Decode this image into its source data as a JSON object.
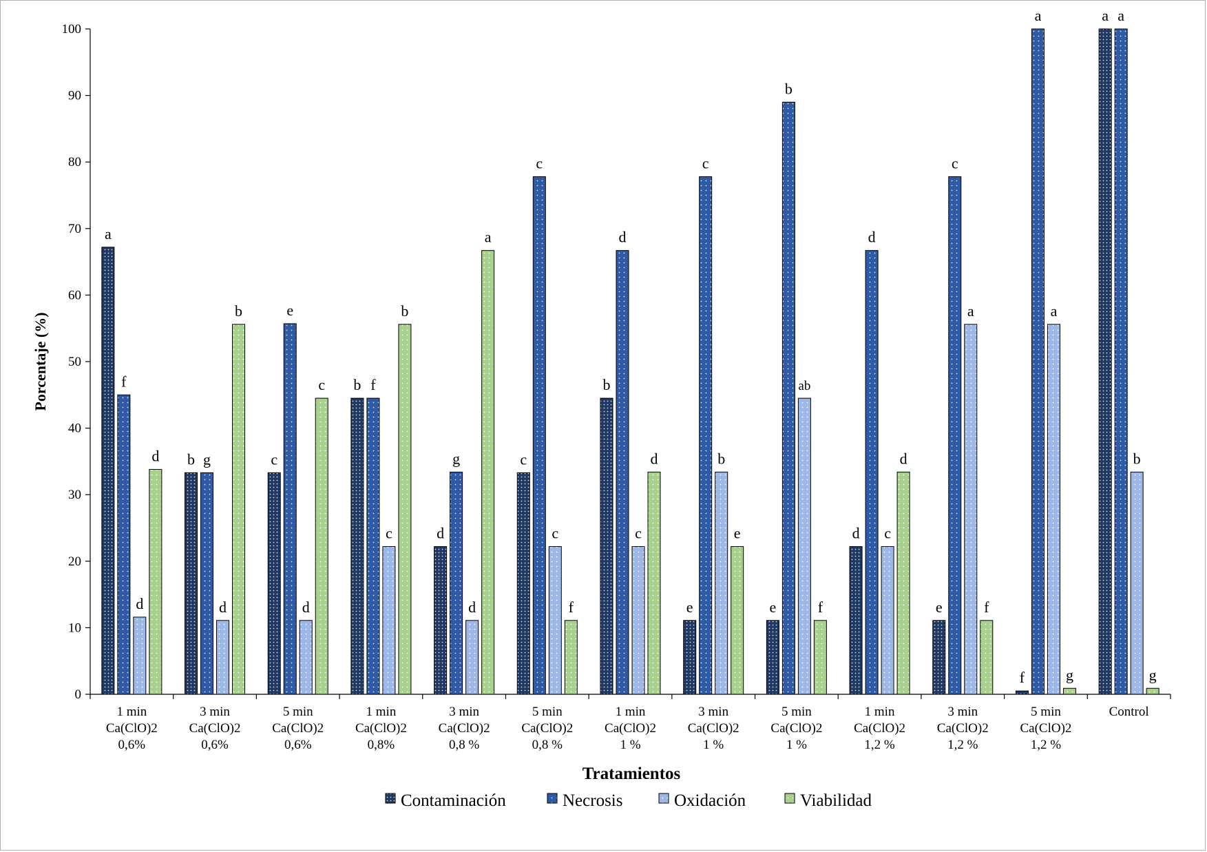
{
  "chart_data": {
    "type": "bar",
    "title": "",
    "xlabel": "Tratamientos",
    "ylabel": "Porcentaje (%)",
    "ylim": [
      0,
      100
    ],
    "yticks": [
      0,
      10,
      20,
      30,
      40,
      50,
      60,
      70,
      80,
      90,
      100
    ],
    "grid": false,
    "legend_position": "bottom",
    "categories": [
      [
        "1 min",
        "Ca(ClO)2",
        "0,6%"
      ],
      [
        "3 min",
        "Ca(ClO)2",
        "0,6%"
      ],
      [
        "5 min",
        "Ca(ClO)2",
        "0,6%"
      ],
      [
        "1 min",
        "Ca(ClO)2",
        "0,8%"
      ],
      [
        "3 min",
        "Ca(ClO)2",
        "0,8 %"
      ],
      [
        "5 min",
        "Ca(ClO)2",
        "0,8 %"
      ],
      [
        "1 min",
        "Ca(ClO)2",
        "1 %"
      ],
      [
        "3 min",
        "Ca(ClO)2",
        "1 %"
      ],
      [
        "5 min",
        "Ca(ClO)2",
        "1 %"
      ],
      [
        "1 min",
        "Ca(ClO)2",
        "1,2 %"
      ],
      [
        "3 min",
        "Ca(ClO)2",
        "1,2 %"
      ],
      [
        "5 min",
        "Ca(ClO)2",
        "1,2 %"
      ],
      [
        "Control"
      ]
    ],
    "series": [
      {
        "name": "Contaminación",
        "color": "#1f3864",
        "values": [
          67.2,
          33.3,
          33.3,
          44.5,
          22.2,
          33.3,
          44.5,
          11.1,
          11.1,
          22.2,
          11.1,
          0.5,
          100
        ],
        "labels": [
          "a",
          "b",
          "c",
          "b",
          "d",
          "c",
          "b",
          "e",
          "e",
          "d",
          "e",
          "f",
          "a"
        ]
      },
      {
        "name": "Necrosis",
        "color": "#2e5aa6",
        "values": [
          45,
          33.3,
          55.7,
          44.5,
          33.4,
          77.8,
          66.7,
          77.8,
          89,
          66.7,
          77.8,
          100,
          100
        ],
        "labels": [
          "f",
          "g",
          "e",
          "f",
          "g",
          "c",
          "d",
          "c",
          "b",
          "d",
          "c",
          "a",
          "a"
        ]
      },
      {
        "name": "Oxidación",
        "color": "#9db7e6",
        "values": [
          11.6,
          11.1,
          11.1,
          22.2,
          11.1,
          22.2,
          22.2,
          33.4,
          44.5,
          22.2,
          55.6,
          55.6,
          33.4
        ],
        "labels": [
          "d",
          "d",
          "d",
          "c",
          "d",
          "c",
          "c",
          "b",
          "ab",
          "c",
          "a",
          "a",
          "b"
        ]
      },
      {
        "name": "Viabilidad",
        "color": "#a9d18e",
        "values": [
          33.8,
          55.6,
          44.5,
          55.6,
          66.7,
          11.1,
          33.4,
          22.2,
          11.1,
          33.4,
          11.1,
          0.9,
          0.9
        ],
        "labels": [
          "d",
          "b",
          "c",
          "b",
          "a",
          "f",
          "d",
          "e",
          "f",
          "d",
          "f",
          "g",
          "g"
        ]
      }
    ]
  }
}
